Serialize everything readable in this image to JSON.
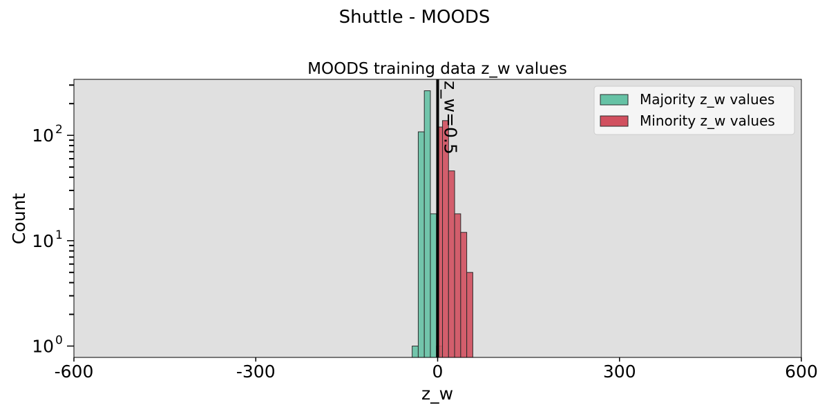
{
  "chart_data": {
    "type": "bar",
    "suptitle": "Shuttle - MOODS",
    "title": "MOODS training data z_w values",
    "xlabel": "z_w",
    "ylabel": "Count",
    "xlim": [
      -600,
      600
    ],
    "ylim": [
      0.78,
      340
    ],
    "y_scale": "log",
    "x_ticks": [
      {
        "value": -600,
        "label": "-600"
      },
      {
        "value": -300,
        "label": "-300"
      },
      {
        "value": 0,
        "label": "0"
      },
      {
        "value": 300,
        "label": "300"
      },
      {
        "value": 600,
        "label": "600"
      }
    ],
    "y_ticks": [
      {
        "value": 1,
        "base": "10",
        "exp": "0"
      },
      {
        "value": 10,
        "base": "10",
        "exp": "1"
      },
      {
        "value": 100,
        "base": "10",
        "exp": "2"
      }
    ],
    "grid": false,
    "legend_position": "top-right",
    "background_color": "#e0e0e0",
    "series": [
      {
        "name": "Majority z_w values",
        "color": "#66c2a5",
        "bins": [
          {
            "x0": -42,
            "x1": -32,
            "count": 1
          },
          {
            "x0": -32,
            "x1": -22,
            "count": 108
          },
          {
            "x0": -22,
            "x1": -12,
            "count": 265
          },
          {
            "x0": -12,
            "x1": -2,
            "count": 18
          },
          {
            "x0": -2,
            "x1": 8,
            "count": 1
          }
        ]
      },
      {
        "name": "Minority z_w values",
        "color": "#d1505f",
        "bins": [
          {
            "x0": 0,
            "x1": 8,
            "count": 120
          },
          {
            "x0": 8,
            "x1": 18,
            "count": 138
          },
          {
            "x0": 18,
            "x1": 28,
            "count": 46
          },
          {
            "x0": 28,
            "x1": 38,
            "count": 18
          },
          {
            "x0": 38,
            "x1": 48,
            "count": 12
          },
          {
            "x0": 48,
            "x1": 58,
            "count": 5
          }
        ]
      }
    ],
    "annotations": [
      {
        "type": "vline",
        "x": 0,
        "label": "z_w=0.5",
        "color": "#000000"
      }
    ]
  }
}
